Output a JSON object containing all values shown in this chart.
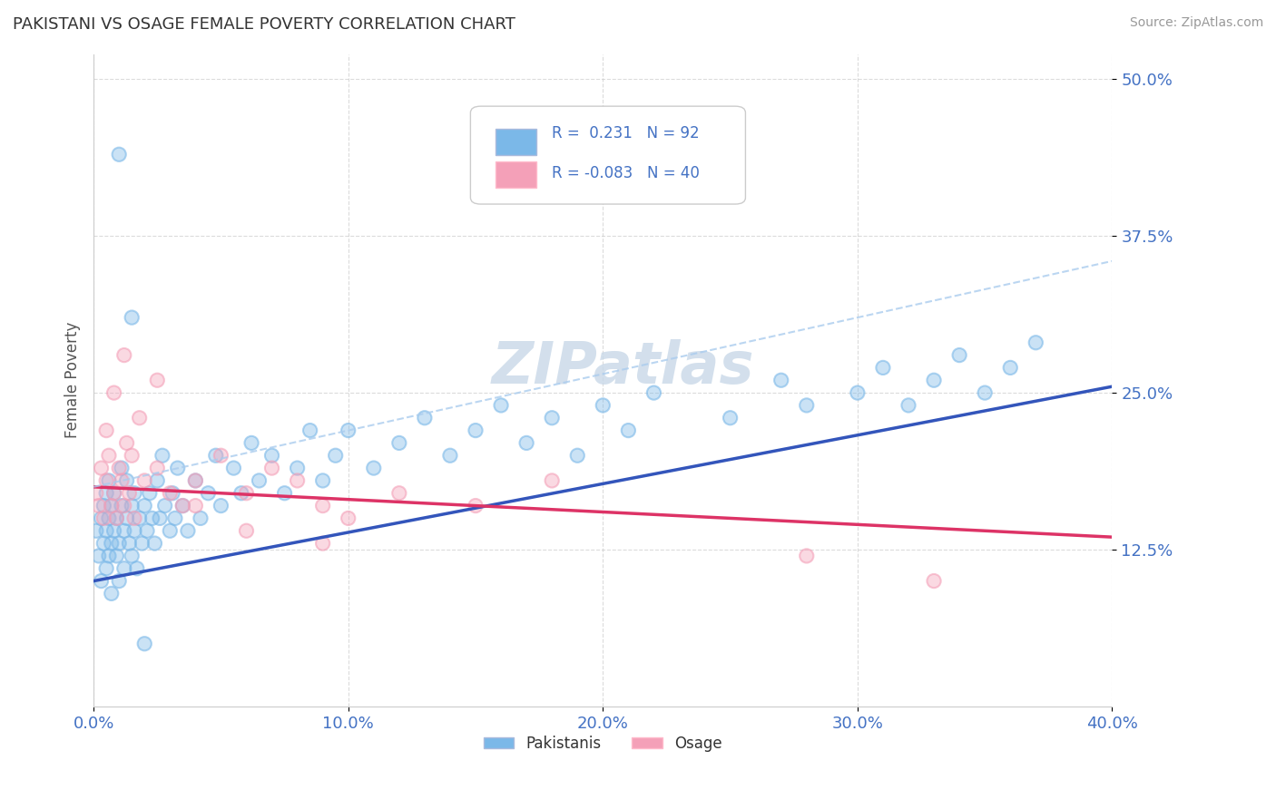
{
  "title": "PAKISTANI VS OSAGE FEMALE POVERTY CORRELATION CHART",
  "source": "Source: ZipAtlas.com",
  "ylabel": "Female Poverty",
  "xlim": [
    0.0,
    0.4
  ],
  "ylim": [
    0.0,
    0.52
  ],
  "yticks": [
    0.125,
    0.25,
    0.375,
    0.5
  ],
  "ytick_labels": [
    "12.5%",
    "25.0%",
    "37.5%",
    "50.0%"
  ],
  "xticks": [
    0.0,
    0.1,
    0.2,
    0.3,
    0.4
  ],
  "xtick_labels": [
    "0.0%",
    "10.0%",
    "20.0%",
    "30.0%",
    "40.0%"
  ],
  "pakistani_R": 0.231,
  "pakistani_N": 92,
  "osage_R": -0.083,
  "osage_N": 40,
  "blue_color": "#7BB8E8",
  "pink_color": "#F4A0B8",
  "blue_line_color": "#3355BB",
  "pink_line_color": "#DD3366",
  "blue_dashed_color": "#AACCEE",
  "watermark": "ZIPatlas",
  "legend_label1": "Pakistanis",
  "legend_label2": "Osage",
  "title_color": "#333333",
  "tick_label_color": "#4472C4",
  "grid_color": "#CCCCCC",
  "background_color": "#FFFFFF",
  "pak_x": [
    0.001,
    0.002,
    0.003,
    0.003,
    0.004,
    0.004,
    0.005,
    0.005,
    0.005,
    0.006,
    0.006,
    0.006,
    0.007,
    0.007,
    0.007,
    0.008,
    0.008,
    0.009,
    0.009,
    0.01,
    0.01,
    0.011,
    0.011,
    0.012,
    0.012,
    0.013,
    0.013,
    0.014,
    0.015,
    0.015,
    0.016,
    0.016,
    0.017,
    0.018,
    0.019,
    0.02,
    0.021,
    0.022,
    0.023,
    0.024,
    0.025,
    0.026,
    0.027,
    0.028,
    0.03,
    0.031,
    0.032,
    0.033,
    0.035,
    0.037,
    0.04,
    0.042,
    0.045,
    0.048,
    0.05,
    0.055,
    0.058,
    0.062,
    0.065,
    0.07,
    0.075,
    0.08,
    0.085,
    0.09,
    0.095,
    0.1,
    0.11,
    0.12,
    0.13,
    0.14,
    0.15,
    0.16,
    0.17,
    0.18,
    0.19,
    0.2,
    0.21,
    0.22,
    0.25,
    0.27,
    0.28,
    0.3,
    0.31,
    0.32,
    0.33,
    0.34,
    0.35,
    0.36,
    0.37,
    0.01,
    0.015,
    0.02
  ],
  "pak_y": [
    0.14,
    0.12,
    0.15,
    0.1,
    0.13,
    0.16,
    0.11,
    0.14,
    0.17,
    0.12,
    0.15,
    0.18,
    0.13,
    0.16,
    0.09,
    0.14,
    0.17,
    0.12,
    0.15,
    0.1,
    0.13,
    0.16,
    0.19,
    0.14,
    0.11,
    0.15,
    0.18,
    0.13,
    0.16,
    0.12,
    0.14,
    0.17,
    0.11,
    0.15,
    0.13,
    0.16,
    0.14,
    0.17,
    0.15,
    0.13,
    0.18,
    0.15,
    0.2,
    0.16,
    0.14,
    0.17,
    0.15,
    0.19,
    0.16,
    0.14,
    0.18,
    0.15,
    0.17,
    0.2,
    0.16,
    0.19,
    0.17,
    0.21,
    0.18,
    0.2,
    0.17,
    0.19,
    0.22,
    0.18,
    0.2,
    0.22,
    0.19,
    0.21,
    0.23,
    0.2,
    0.22,
    0.24,
    0.21,
    0.23,
    0.2,
    0.24,
    0.22,
    0.25,
    0.23,
    0.26,
    0.24,
    0.25,
    0.27,
    0.24,
    0.26,
    0.28,
    0.25,
    0.27,
    0.29,
    0.44,
    0.31,
    0.05
  ],
  "osage_x": [
    0.001,
    0.002,
    0.003,
    0.004,
    0.005,
    0.006,
    0.007,
    0.008,
    0.009,
    0.01,
    0.011,
    0.012,
    0.013,
    0.014,
    0.015,
    0.016,
    0.02,
    0.025,
    0.03,
    0.035,
    0.04,
    0.05,
    0.06,
    0.07,
    0.08,
    0.09,
    0.1,
    0.12,
    0.15,
    0.18,
    0.005,
    0.008,
    0.012,
    0.018,
    0.025,
    0.04,
    0.06,
    0.09,
    0.28,
    0.33
  ],
  "osage_y": [
    0.17,
    0.16,
    0.19,
    0.15,
    0.18,
    0.2,
    0.16,
    0.17,
    0.15,
    0.19,
    0.18,
    0.16,
    0.21,
    0.17,
    0.2,
    0.15,
    0.18,
    0.19,
    0.17,
    0.16,
    0.18,
    0.2,
    0.17,
    0.19,
    0.18,
    0.16,
    0.15,
    0.17,
    0.16,
    0.18,
    0.22,
    0.25,
    0.28,
    0.23,
    0.26,
    0.16,
    0.14,
    0.13,
    0.12,
    0.1
  ]
}
